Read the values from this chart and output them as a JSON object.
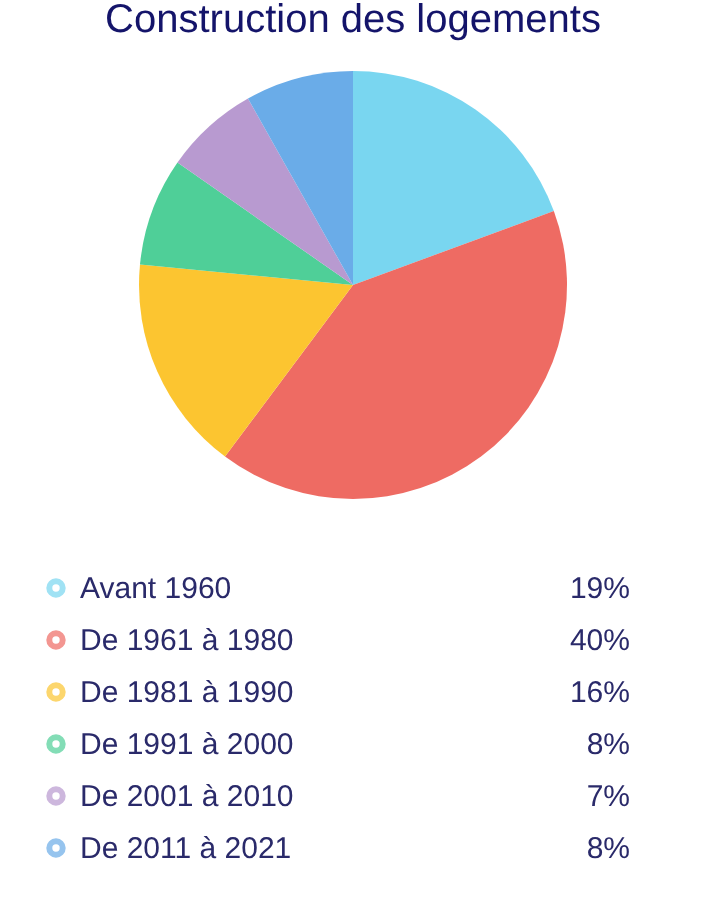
{
  "chart_data": {
    "type": "pie",
    "title": "Construction des logements",
    "categories": [
      "Avant 1960",
      "De 1961 à 1980",
      "De 1981 à 1990",
      "De 1991 à 2000",
      "De 2001 à 2010",
      "De 2011 à 2021"
    ],
    "values": [
      19,
      40,
      16,
      8,
      7,
      8
    ],
    "colors": [
      "#79d6f0",
      "#ee6b63",
      "#fcc530",
      "#4fcf98",
      "#b89ad0",
      "#6aace8"
    ],
    "value_labels": [
      "19%",
      "40%",
      "16%",
      "8%",
      "7%",
      "8%"
    ],
    "legend": "bottom"
  }
}
